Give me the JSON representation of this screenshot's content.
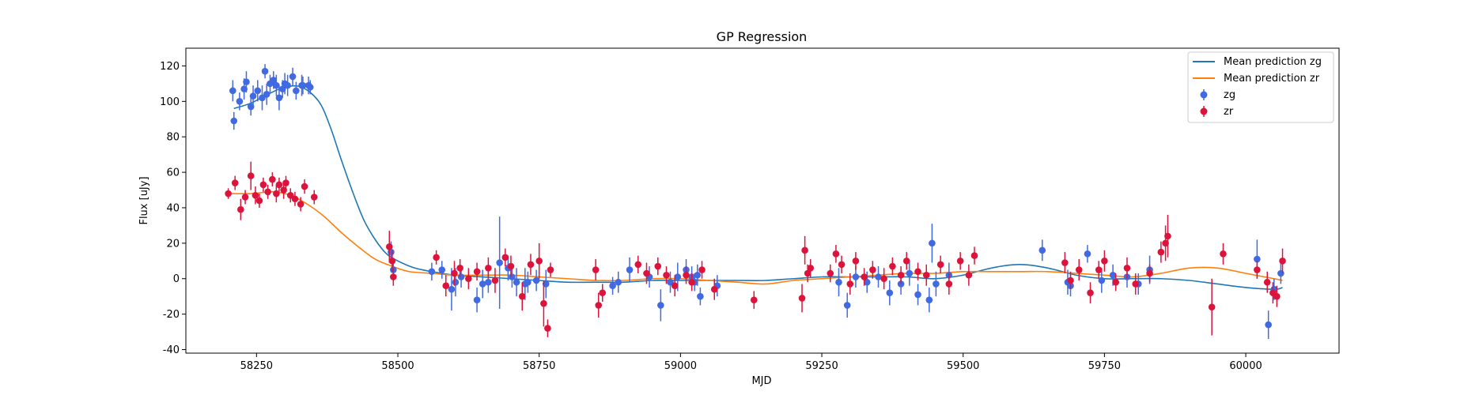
{
  "chart_data": {
    "type": "scatter",
    "title": "GP Regression",
    "xlabel": "MJD",
    "ylabel": "Flux [uJy]",
    "xlim": [
      58125,
      60165
    ],
    "ylim": [
      -42,
      130
    ],
    "xticks": [
      58250,
      58500,
      58750,
      59000,
      59250,
      59500,
      59750,
      60000
    ],
    "yticks": [
      -40,
      -20,
      0,
      20,
      40,
      60,
      80,
      100,
      120
    ],
    "grid": false,
    "legend_position": "top-right",
    "colors": {
      "zg_line": "#1f77b4",
      "zr_line": "#ff7f0e",
      "zg_points": "#4169e1",
      "zr_points": "#dc143c"
    },
    "lines": [
      {
        "name": "Mean prediction zg",
        "color": "#1f77b4",
        "x": [
          58210,
          58240,
          58270,
          58300,
          58330,
          58360,
          58380,
          58400,
          58420,
          58440,
          58460,
          58480,
          58500,
          58530,
          58560,
          58600,
          58650,
          58700,
          58750,
          58800,
          58850,
          58900,
          58950,
          59000,
          59050,
          59100,
          59150,
          59200,
          59250,
          59300,
          59350,
          59400,
          59450,
          59500,
          59550,
          59600,
          59650,
          59700,
          59750,
          59800,
          59850,
          59900,
          59950,
          60000,
          60050,
          60065
        ],
        "y": [
          96,
          99,
          104,
          108,
          108,
          100,
          86,
          67,
          49,
          33,
          22,
          14,
          10,
          6,
          4,
          2,
          1,
          0,
          -1,
          -2,
          -2,
          -2,
          -1,
          -1,
          -1,
          -1,
          -1,
          0,
          1,
          1,
          1,
          1,
          0,
          2,
          6,
          8,
          6,
          2,
          0,
          0,
          0,
          -1,
          -3,
          -5,
          -6,
          -5
        ]
      },
      {
        "name": "Mean prediction zr",
        "color": "#ff7f0e",
        "x": [
          58200,
          58240,
          58280,
          58310,
          58340,
          58370,
          58400,
          58430,
          58460,
          58490,
          58520,
          58560,
          58600,
          58650,
          58700,
          58750,
          58800,
          58850,
          58900,
          58950,
          59000,
          59050,
          59100,
          59150,
          59200,
          59250,
          59300,
          59350,
          59400,
          59450,
          59500,
          59550,
          59600,
          59650,
          59700,
          59750,
          59800,
          59850,
          59900,
          59950,
          60000,
          60050,
          60065
        ],
        "y": [
          48,
          48,
          49,
          47,
          42,
          35,
          26,
          18,
          11,
          7,
          4,
          3,
          2,
          2,
          2,
          1,
          0,
          -1,
          -1,
          0,
          0,
          -1,
          -2,
          -3,
          -1,
          0,
          1,
          2,
          3,
          3,
          4,
          4,
          4,
          4,
          3,
          2,
          1,
          3,
          6,
          6,
          3,
          0,
          -1
        ]
      }
    ],
    "series": [
      {
        "name": "zg",
        "color": "#4169e1",
        "x": [
          58208,
          58210,
          58220,
          58228,
          58232,
          58240,
          58244,
          58252,
          58260,
          58265,
          58268,
          58274,
          58280,
          58285,
          58290,
          58296,
          58300,
          58305,
          58314,
          58320,
          58330,
          58332,
          58342,
          58345,
          58488,
          58492,
          58560,
          58578,
          58595,
          58602,
          58612,
          58640,
          58650,
          58660,
          58680,
          58695,
          58702,
          58710,
          58725,
          58730,
          58745,
          58762,
          58880,
          58890,
          58910,
          58945,
          58965,
          58982,
          58995,
          59010,
          59020,
          59025,
          59030,
          59035,
          59065,
          59280,
          59295,
          59310,
          59330,
          59350,
          59370,
          59390,
          59405,
          59420,
          59440,
          59445,
          59452,
          59475,
          59640,
          59685,
          59690,
          59720,
          59745,
          59765,
          59790,
          59810,
          59830,
          60020,
          60040,
          60050,
          60062
        ],
        "y": [
          106,
          89,
          100,
          107,
          111,
          97,
          103,
          106,
          102,
          117,
          104,
          110,
          112,
          109,
          102,
          107,
          110,
          109,
          114,
          106,
          109,
          109,
          109,
          108,
          15,
          5,
          4,
          5,
          -6,
          -2,
          1,
          -12,
          -3,
          -2,
          9,
          6,
          1,
          -2,
          -3,
          -2,
          -1,
          -3,
          -4,
          -2,
          5,
          1,
          -15,
          -2,
          1,
          5,
          1,
          -2,
          2,
          -10,
          -4,
          -2,
          -15,
          1,
          -2,
          1,
          -8,
          -3,
          3,
          -9,
          -12,
          20,
          -3,
          2,
          16,
          -2,
          -4,
          14,
          -1,
          2,
          1,
          -3,
          5,
          11,
          -26,
          -6,
          3
        ],
        "err": [
          6,
          5,
          5,
          6,
          6,
          5,
          6,
          6,
          7,
          4,
          6,
          5,
          5,
          6,
          7,
          5,
          6,
          6,
          5,
          5,
          6,
          5,
          5,
          4,
          6,
          6,
          5,
          5,
          12,
          8,
          6,
          7,
          8,
          6,
          26,
          7,
          6,
          8,
          9,
          6,
          6,
          8,
          5,
          6,
          7,
          6,
          9,
          6,
          8,
          6,
          6,
          5,
          6,
          5,
          6,
          8,
          7,
          6,
          6,
          6,
          7,
          6,
          7,
          6,
          7,
          11,
          7,
          7,
          6,
          7,
          6,
          5,
          7,
          6,
          6,
          6,
          8,
          11,
          8,
          6,
          6
        ]
      },
      {
        "name": "zr",
        "color": "#dc143c",
        "x": [
          58200,
          58212,
          58222,
          58230,
          58240,
          58248,
          58255,
          58262,
          58270,
          58278,
          58285,
          58290,
          58298,
          58302,
          58310,
          58318,
          58328,
          58335,
          58352,
          58485,
          58490,
          58492,
          58568,
          58585,
          58600,
          58610,
          58625,
          58640,
          58660,
          58672,
          58690,
          58700,
          58720,
          58735,
          58750,
          58758,
          58765,
          58770,
          58850,
          58855,
          58862,
          58925,
          58940,
          58960,
          58975,
          58990,
          59010,
          59020,
          59038,
          59060,
          59130,
          59215,
          59220,
          59225,
          59230,
          59265,
          59275,
          59285,
          59300,
          59310,
          59325,
          59340,
          59360,
          59375,
          59390,
          59400,
          59420,
          59435,
          59460,
          59475,
          59495,
          59510,
          59520,
          59680,
          59690,
          59705,
          59725,
          59740,
          59750,
          59770,
          59790,
          59805,
          59830,
          59850,
          59858,
          59862,
          59940,
          59960,
          60020,
          60038,
          60048,
          60055,
          60065
        ],
        "y": [
          48,
          54,
          39,
          46,
          58,
          47,
          44,
          53,
          49,
          56,
          48,
          53,
          50,
          54,
          47,
          45,
          42,
          52,
          46,
          18,
          10,
          1,
          12,
          -4,
          3,
          6,
          0,
          4,
          6,
          -1,
          12,
          7,
          -10,
          8,
          10,
          -14,
          -28,
          5,
          5,
          -15,
          -8,
          8,
          3,
          7,
          2,
          -4,
          2,
          -2,
          5,
          -6,
          -12,
          -11,
          16,
          3,
          6,
          3,
          14,
          8,
          -3,
          10,
          1,
          5,
          0,
          7,
          2,
          10,
          4,
          2,
          8,
          -3,
          10,
          2,
          13,
          9,
          -1,
          5,
          -8,
          5,
          10,
          -2,
          6,
          -3,
          3,
          15,
          20,
          24,
          -16,
          14,
          5,
          -2,
          -8,
          -10,
          10
        ],
        "err": [
          3,
          4,
          6,
          4,
          8,
          5,
          4,
          4,
          4,
          4,
          5,
          4,
          5,
          4,
          4,
          4,
          4,
          4,
          4,
          9,
          6,
          5,
          4,
          6,
          7,
          5,
          6,
          5,
          6,
          7,
          5,
          6,
          8,
          6,
          10,
          13,
          5,
          4,
          6,
          7,
          5,
          5,
          6,
          5,
          5,
          6,
          5,
          5,
          5,
          6,
          5,
          8,
          8,
          5,
          5,
          5,
          5,
          5,
          6,
          5,
          5,
          5,
          6,
          5,
          5,
          5,
          5,
          6,
          5,
          6,
          5,
          6,
          5,
          6,
          5,
          6,
          6,
          5,
          6,
          5,
          6,
          6,
          5,
          6,
          10,
          12,
          16,
          6,
          5,
          6,
          6,
          6,
          7
        ]
      }
    ]
  }
}
